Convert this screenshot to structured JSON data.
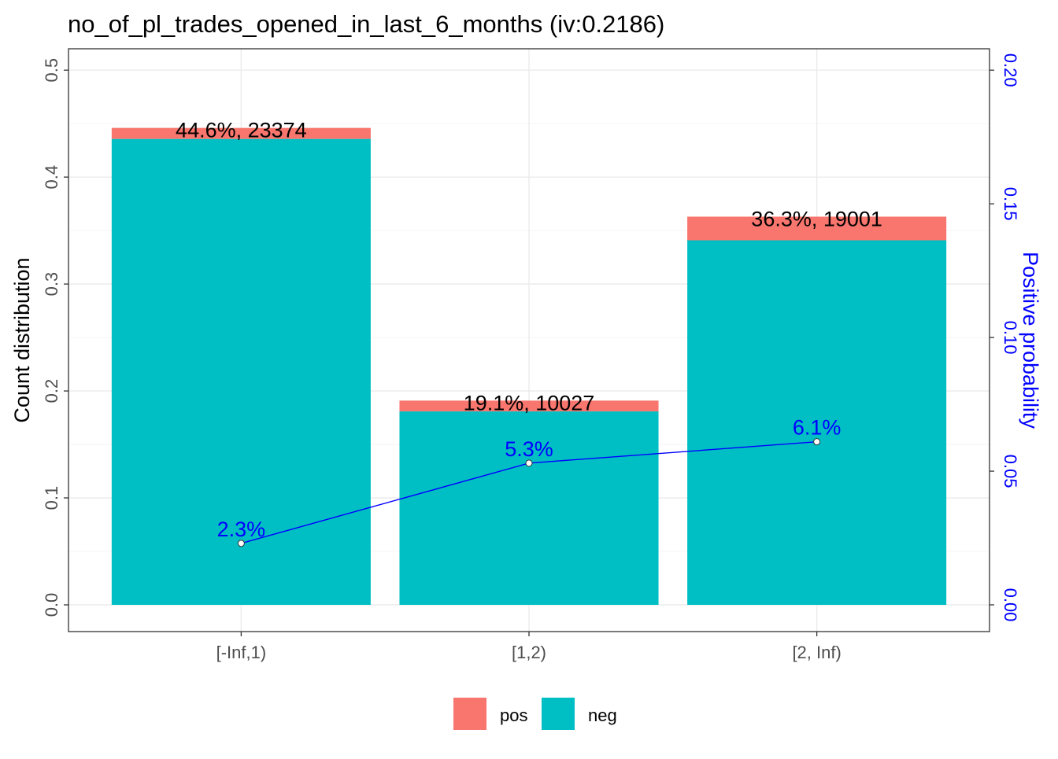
{
  "chart_data": {
    "type": "bar",
    "title": "no_of_pl_trades_opened_in_last_6_months  (iv:0.2186)",
    "categories": [
      "[-Inf,1)",
      "[1,2)",
      "[2, Inf)"
    ],
    "series": [
      {
        "name": "pos",
        "color": "#F8766D",
        "values": [
          0.0103,
          0.0101,
          0.0221
        ]
      },
      {
        "name": "neg",
        "color": "#00BFC4",
        "values": [
          0.4357,
          0.1809,
          0.3409
        ]
      }
    ],
    "bar_labels": [
      "44.6%, 23374",
      "19.1%, 10027",
      "36.3%, 19001"
    ],
    "positive_probability": {
      "values": [
        0.023,
        0.053,
        0.061
      ],
      "labels": [
        "2.3%",
        "5.3%",
        "6.1%"
      ],
      "color": "#0000FF"
    },
    "ylabel": "Count distribution",
    "ylim": [
      -0.025,
      0.52
    ],
    "yticks": [
      0.0,
      0.1,
      0.2,
      0.3,
      0.4,
      0.5
    ],
    "ytick_labels": [
      "0.0",
      "0.1",
      "0.2",
      "0.3",
      "0.4",
      "0.5"
    ],
    "y2label": "Positive probability",
    "y2lim": [
      -0.01,
      0.208
    ],
    "y2ticks": [
      0.0,
      0.05,
      0.1,
      0.15,
      0.2
    ],
    "y2tick_labels": [
      "0.00",
      "0.05",
      "0.10",
      "0.15",
      "0.20"
    ],
    "y2color": "#0000FF",
    "grid": true,
    "legend": {
      "position": "bottom",
      "entries": [
        "pos",
        "neg"
      ]
    }
  }
}
